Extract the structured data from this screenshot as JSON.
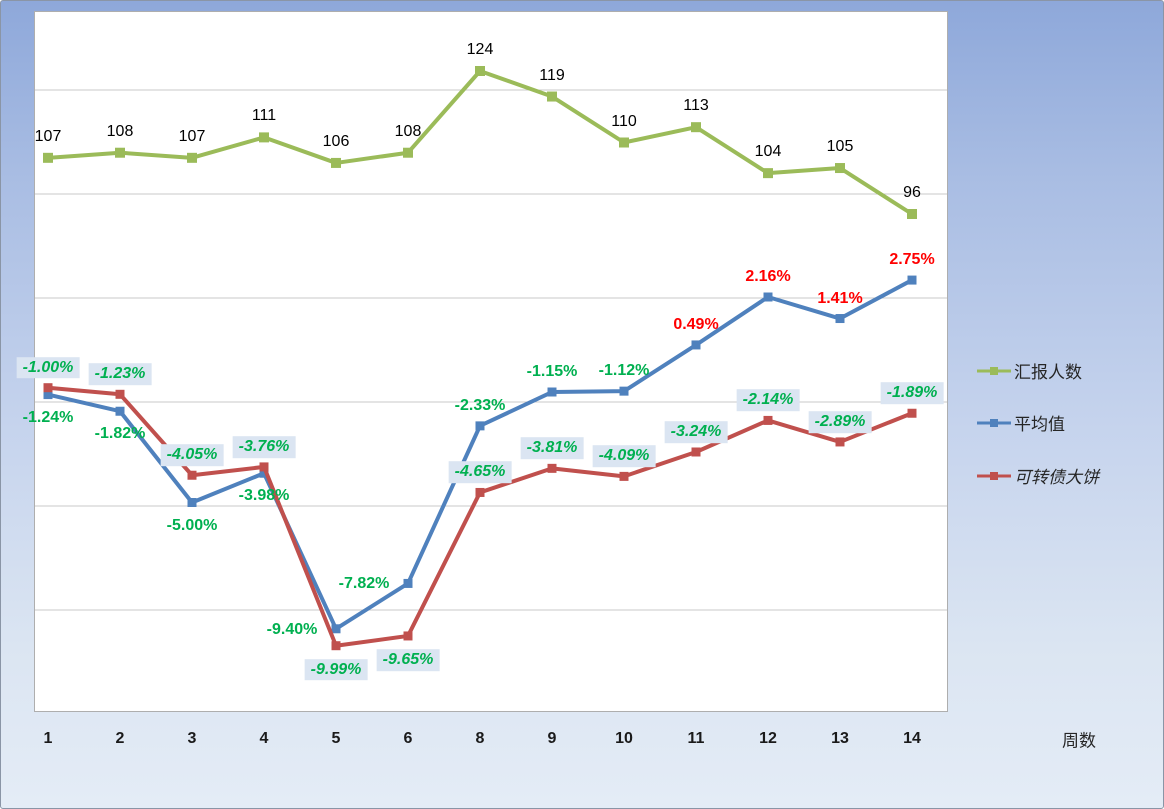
{
  "chart_data": {
    "type": "line",
    "title": "",
    "xlabel": "周数",
    "categories": [
      "1",
      "2",
      "3",
      "4",
      "5",
      "6",
      "8",
      "9",
      "10",
      "11",
      "12",
      "13",
      "14"
    ],
    "grid": true,
    "legend_position": "right",
    "axes": {
      "value_axis_visible": false,
      "count_axis_estimated_range": [
        0,
        140
      ],
      "percent_axis_estimated_range": [
        -12,
        4
      ]
    },
    "series": [
      {
        "name": "汇报人数",
        "color": "#9BBB59",
        "axis": "count",
        "values": [
          107,
          108,
          107,
          111,
          106,
          108,
          124,
          119,
          110,
          113,
          104,
          105,
          96
        ],
        "labels": [
          "107",
          "108",
          "107",
          "111",
          "106",
          "108",
          "124",
          "119",
          "110",
          "113",
          "104",
          "105",
          "96"
        ],
        "label_color": "#000000"
      },
      {
        "name": "平均值",
        "color": "#4F81BD",
        "axis": "percent",
        "values": [
          -1.24,
          -1.82,
          -5.0,
          -3.98,
          -9.4,
          -7.82,
          -2.33,
          -1.15,
          -1.12,
          0.49,
          2.16,
          1.41,
          2.75
        ],
        "labels": [
          "-1.24%",
          "-1.82%",
          "-5.00%",
          "-3.98%",
          "-9.40%",
          "-7.82%",
          "-2.33%",
          "-1.15%",
          "-1.12%",
          "0.49%",
          "2.16%",
          "1.41%",
          "2.75%"
        ],
        "label_color_negative": "#00B050",
        "label_color_positive": "#FF0000"
      },
      {
        "name": "可转债大饼",
        "color": "#C0504D",
        "axis": "percent",
        "values": [
          -1.0,
          -1.23,
          -4.05,
          -3.76,
          -9.99,
          -9.65,
          -4.65,
          -3.81,
          -4.09,
          -3.24,
          -2.14,
          -2.89,
          -1.89
        ],
        "labels": [
          "-1.00%",
          "-1.23%",
          "-4.05%",
          "-3.76%",
          "-9.99%",
          "-9.65%",
          "-4.65%",
          "-3.81%",
          "-4.09%",
          "-3.24%",
          "-2.14%",
          "-2.89%",
          "-1.89%"
        ],
        "label_color": "#00B050",
        "label_style": "italic",
        "label_bg": "#DBE5F2"
      }
    ]
  },
  "colors": {
    "gridline": "#C8C8C8",
    "plot_background": "#FFFFFF",
    "plot_border": "#AEAEAE",
    "label_green": "#00B050",
    "label_red": "#FF0000",
    "label_box_bg": "#DBE5F2"
  }
}
